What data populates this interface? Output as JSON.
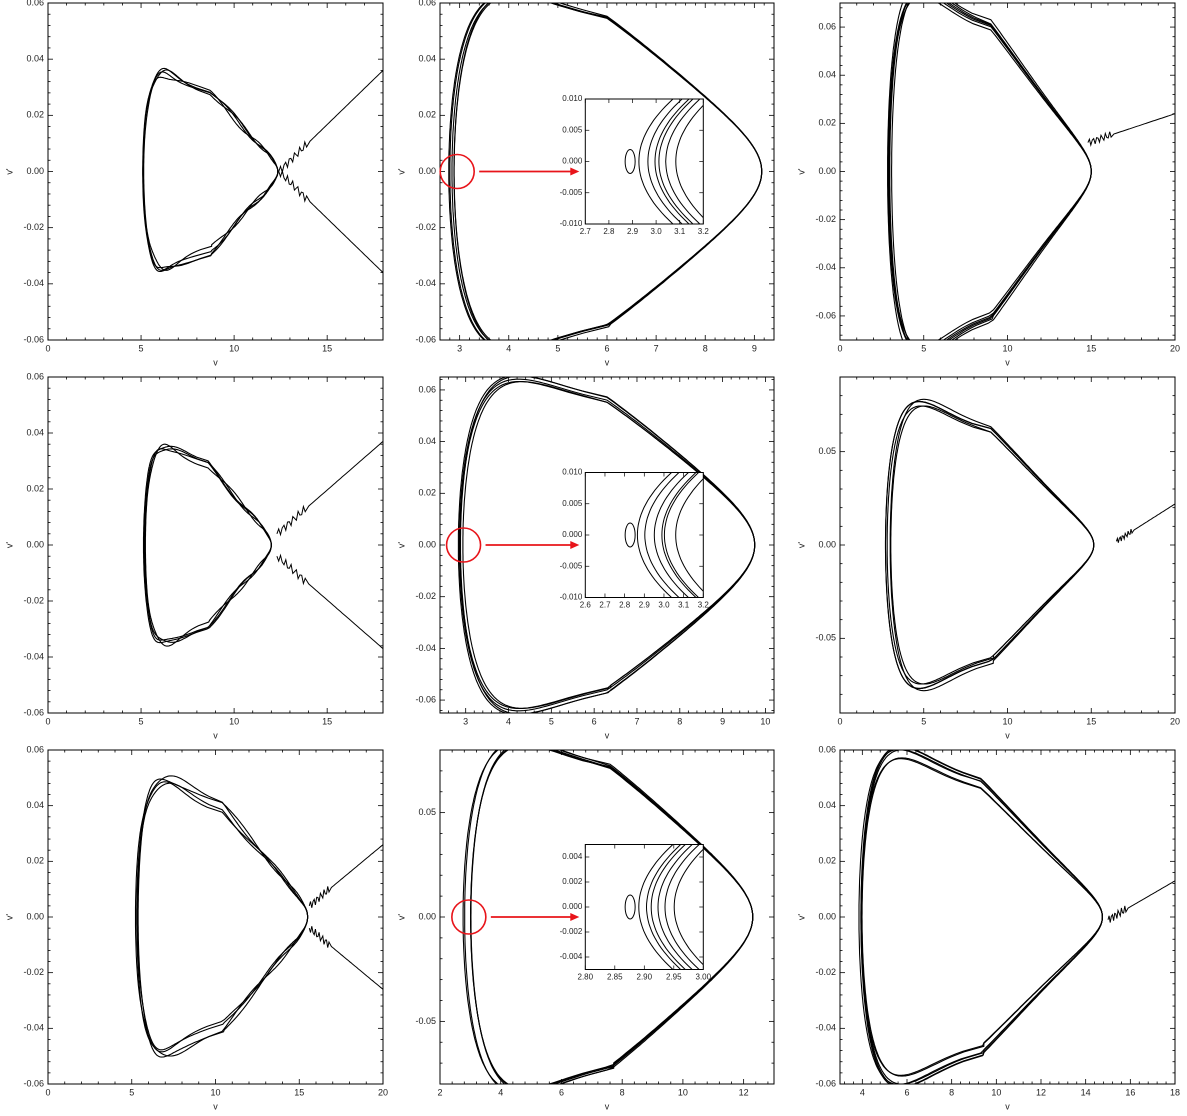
{
  "chart_data": [
    {
      "type": "line",
      "xlabel": "v",
      "ylabel": "v'",
      "xlim": [
        0,
        18
      ],
      "ylim": [
        -0.06,
        0.06
      ],
      "xticks": [
        0,
        5,
        10,
        15
      ],
      "yticks": [
        -0.06,
        -0.04,
        -0.02,
        0.0,
        0.02,
        0.04,
        0.06
      ],
      "ytick_labels": [
        "-0.06",
        "-0.04",
        "-0.02",
        "0.00",
        "0.02",
        "0.04",
        "0.06"
      ],
      "orbit": {
        "center": [
          8.7,
          0
        ],
        "left": 5.1,
        "right": 12.4,
        "amp": 0.029,
        "peak_x": 7.2,
        "loops": 4,
        "jitter": 0.0012,
        "wiggle": 8
      },
      "escape": {
        "from": [
          12.4,
          0.0
        ],
        "to": [
          18,
          0.036
        ],
        "mirror": true
      }
    },
    {
      "type": "line",
      "xlabel": "v",
      "ylabel": "v'",
      "xlim": [
        2.6,
        9.4
      ],
      "ylim": [
        -0.06,
        0.06
      ],
      "xticks": [
        3,
        4,
        5,
        6,
        7,
        8,
        9
      ],
      "yticks": [
        -0.06,
        -0.04,
        -0.02,
        0.0,
        0.02,
        0.04,
        0.06
      ],
      "ytick_labels": [
        "-0.06",
        "-0.04",
        "-0.02",
        "0.00",
        "0.02",
        "0.04",
        "0.06"
      ],
      "orbit": {
        "center": [
          6.0,
          0
        ],
        "left": 2.9,
        "right": 9.2,
        "amp": 0.054,
        "peak_x": 5.3,
        "loops": 5,
        "jitter": 0.0015,
        "wiggle": 0
      },
      "highlight": {
        "x": 2.95,
        "y": 0.0,
        "to_inset": true
      },
      "inset": {
        "xlim": [
          2.7,
          3.2
        ],
        "ylim": [
          -0.01,
          0.01
        ],
        "xticks": [
          2.7,
          2.8,
          2.9,
          3.0,
          3.1,
          3.2
        ],
        "xtick_labels": [
          "2.7",
          "2.8",
          "2.9",
          "3.0",
          "3.1",
          "3.2"
        ],
        "yticks": [
          -0.01,
          -0.005,
          0.0,
          0.005,
          0.01
        ],
        "ytick_labels": [
          "-0.010",
          "-0.005",
          "0.000",
          "0.005",
          "0.010"
        ]
      }
    },
    {
      "type": "line",
      "xlabel": "v",
      "ylabel": "v'",
      "xlim": [
        0,
        20
      ],
      "ylim": [
        -0.07,
        0.07
      ],
      "xticks": [
        0,
        5,
        10,
        15,
        20
      ],
      "yticks": [
        -0.06,
        -0.04,
        -0.02,
        0.0,
        0.02,
        0.04,
        0.06
      ],
      "ytick_labels": [
        "-0.06",
        "-0.04",
        "-0.02",
        "0.00",
        "0.02",
        "0.04",
        "0.06"
      ],
      "orbit": {
        "center": [
          9.0,
          0
        ],
        "left": 3.0,
        "right": 15.0,
        "amp": 0.061,
        "peak_x": 6.4,
        "loops": 6,
        "jitter": 0.0025,
        "wiggle": 0
      },
      "escape": {
        "from": [
          14.8,
          0.012
        ],
        "to": [
          20,
          0.024
        ],
        "mirror": false
      }
    },
    {
      "type": "line",
      "xlabel": "v",
      "ylabel": "v'",
      "xlim": [
        0,
        18
      ],
      "ylim": [
        -0.06,
        0.06
      ],
      "xticks": [
        0,
        5,
        10,
        15
      ],
      "yticks": [
        -0.06,
        -0.04,
        -0.02,
        0.0,
        0.02,
        0.04,
        0.06
      ],
      "ytick_labels": [
        "-0.06",
        "-0.04",
        "-0.02",
        "0.00",
        "0.02",
        "0.04",
        "0.06"
      ],
      "orbit": {
        "center": [
          8.6,
          0
        ],
        "left": 5.2,
        "right": 12.0,
        "amp": 0.029,
        "peak_x": 7.2,
        "loops": 4,
        "jitter": 0.0014,
        "wiggle": 7
      },
      "escape": {
        "from": [
          12.3,
          0.004
        ],
        "to": [
          18,
          0.037
        ],
        "mirror": true
      }
    },
    {
      "type": "line",
      "xlabel": "v",
      "ylabel": "v'",
      "xlim": [
        2.4,
        10.2
      ],
      "ylim": [
        -0.065,
        0.065
      ],
      "xticks": [
        3,
        4,
        5,
        6,
        7,
        8,
        9,
        10
      ],
      "yticks": [
        -0.06,
        -0.04,
        -0.02,
        0.0,
        0.02,
        0.04,
        0.06
      ],
      "ytick_labels": [
        "-0.06",
        "-0.04",
        "-0.02",
        "0.00",
        "0.02",
        "0.04",
        "0.06"
      ],
      "orbit": {
        "center": [
          6.3,
          0
        ],
        "left": 2.9,
        "right": 9.8,
        "amp": 0.056,
        "peak_x": 5.6,
        "loops": 5,
        "jitter": 0.0015,
        "wiggle": 0
      },
      "highlight": {
        "x": 2.95,
        "y": 0.0,
        "to_inset": true
      },
      "inset": {
        "xlim": [
          2.6,
          3.2
        ],
        "ylim": [
          -0.01,
          0.01
        ],
        "xticks": [
          2.6,
          2.7,
          2.8,
          2.9,
          3.0,
          3.1,
          3.2
        ],
        "xtick_labels": [
          "2.6",
          "2.7",
          "2.8",
          "2.9",
          "3.0",
          "3.1",
          "3.2"
        ],
        "yticks": [
          -0.01,
          -0.005,
          0.0,
          0.005,
          0.01
        ],
        "ytick_labels": [
          "-0.010",
          "-0.005",
          "0.000",
          "0.005",
          "0.010"
        ]
      }
    },
    {
      "type": "line",
      "xlabel": "v",
      "ylabel": "v'",
      "xlim": [
        0,
        20
      ],
      "ylim": [
        -0.09,
        0.09
      ],
      "xticks": [
        0,
        5,
        10,
        15,
        20
      ],
      "yticks": [
        -0.05,
        0.0,
        0.05
      ],
      "ytick_labels": [
        "-0.05",
        "0.00",
        "0.05"
      ],
      "orbit": {
        "center": [
          9.0,
          0
        ],
        "left": 3.0,
        "right": 15.3,
        "amp": 0.062,
        "peak_x": 6.4,
        "loops": 5,
        "jitter": 0.0018,
        "wiggle": 0
      },
      "escape": {
        "from": [
          16.5,
          0.002
        ],
        "to": [
          20,
          0.022
        ],
        "mirror": false
      }
    },
    {
      "type": "line",
      "xlabel": "v",
      "ylabel": "v'",
      "xlim": [
        0,
        20
      ],
      "ylim": [
        -0.06,
        0.06
      ],
      "xticks": [
        0,
        5,
        10,
        15,
        20
      ],
      "yticks": [
        -0.06,
        -0.04,
        -0.02,
        0.0,
        0.02,
        0.04,
        0.06
      ],
      "ytick_labels": [
        "-0.06",
        "-0.04",
        "-0.02",
        "0.00",
        "0.02",
        "0.04",
        "0.06"
      ],
      "orbit": {
        "center": [
          10.4,
          0
        ],
        "left": 5.3,
        "right": 15.5,
        "amp": 0.04,
        "peak_x": 8.3,
        "loops": 4,
        "jitter": 0.0013,
        "wiggle": 7
      },
      "escape": {
        "from": [
          15.6,
          0.004
        ],
        "to": [
          20,
          0.026
        ],
        "mirror": true
      }
    },
    {
      "type": "line",
      "xlabel": "v",
      "ylabel": "v'",
      "xlim": [
        2,
        13
      ],
      "ylim": [
        -0.08,
        0.08
      ],
      "xticks": [
        2,
        4,
        6,
        8,
        10,
        12
      ],
      "yticks": [
        -0.05,
        0.0,
        0.05
      ],
      "ytick_labels": [
        "-0.05",
        "0.00",
        "0.05"
      ],
      "orbit": {
        "center": [
          7.6,
          0
        ],
        "left": 2.9,
        "right": 12.3,
        "amp": 0.072,
        "peak_x": 6.5,
        "loops": 5,
        "jitter": 0.0015,
        "wiggle": 0
      },
      "highlight": {
        "x": 2.95,
        "y": 0.0,
        "to_inset": true
      },
      "inset": {
        "xlim": [
          2.8,
          3.0
        ],
        "ylim": [
          -0.005,
          0.005
        ],
        "xticks": [
          2.8,
          2.85,
          2.9,
          2.95,
          3.0
        ],
        "xtick_labels": [
          "2.80",
          "2.85",
          "2.90",
          "2.95",
          "3.00"
        ],
        "yticks": [
          -0.004,
          -0.002,
          0.0,
          0.002,
          0.004
        ],
        "ytick_labels": [
          "-0.004",
          "-0.002",
          "0.000",
          "0.002",
          "0.004"
        ]
      }
    },
    {
      "type": "line",
      "xlabel": "v",
      "ylabel": "v'",
      "xlim": [
        3,
        18
      ],
      "ylim": [
        -0.06,
        0.06
      ],
      "xticks": [
        4,
        6,
        8,
        10,
        12,
        14,
        16,
        18
      ],
      "yticks": [
        -0.06,
        -0.04,
        -0.02,
        0.0,
        0.02,
        0.04,
        0.06
      ],
      "ytick_labels": [
        "-0.06",
        "-0.04",
        "-0.02",
        "0.00",
        "0.02",
        "0.04",
        "0.06"
      ],
      "orbit": {
        "center": [
          9.3,
          0
        ],
        "left": 4.1,
        "right": 15.0,
        "amp": 0.048,
        "peak_x": 7.0,
        "loops": 6,
        "jitter": 0.002,
        "wiggle": 0
      },
      "escape": {
        "from": [
          15.0,
          -0.001
        ],
        "to": [
          18,
          0.013
        ],
        "mirror": false
      }
    }
  ]
}
